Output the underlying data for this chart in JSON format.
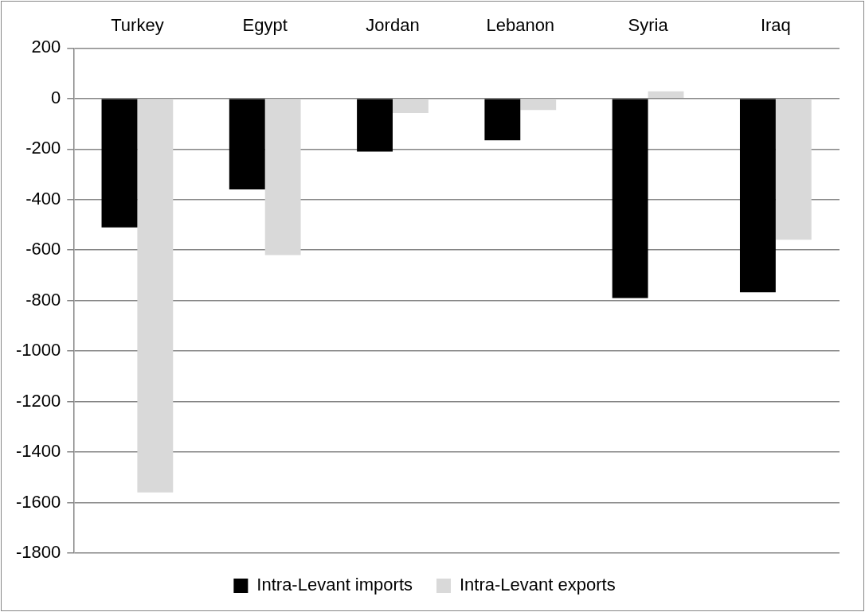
{
  "chart_data": {
    "type": "bar",
    "categories": [
      "Turkey",
      "Egypt",
      "Jordan",
      "Lebanon",
      "Syria",
      "Iraq"
    ],
    "series": [
      {
        "name": "Intra-Levant imports",
        "color": "#000000",
        "values": [
          -510,
          -360,
          -210,
          -165,
          -790,
          -767
        ]
      },
      {
        "name": "Intra-Levant exports",
        "color": "#d9d9d9",
        "values": [
          -1560,
          -620,
          -57,
          -45,
          29,
          -559
        ]
      }
    ],
    "ylim": [
      -1800,
      200
    ],
    "yticks": [
      200,
      0,
      -200,
      -400,
      -600,
      -800,
      -1000,
      -1200,
      -1400,
      -1600,
      -1800
    ],
    "grid": "y",
    "legend": "bottom"
  }
}
